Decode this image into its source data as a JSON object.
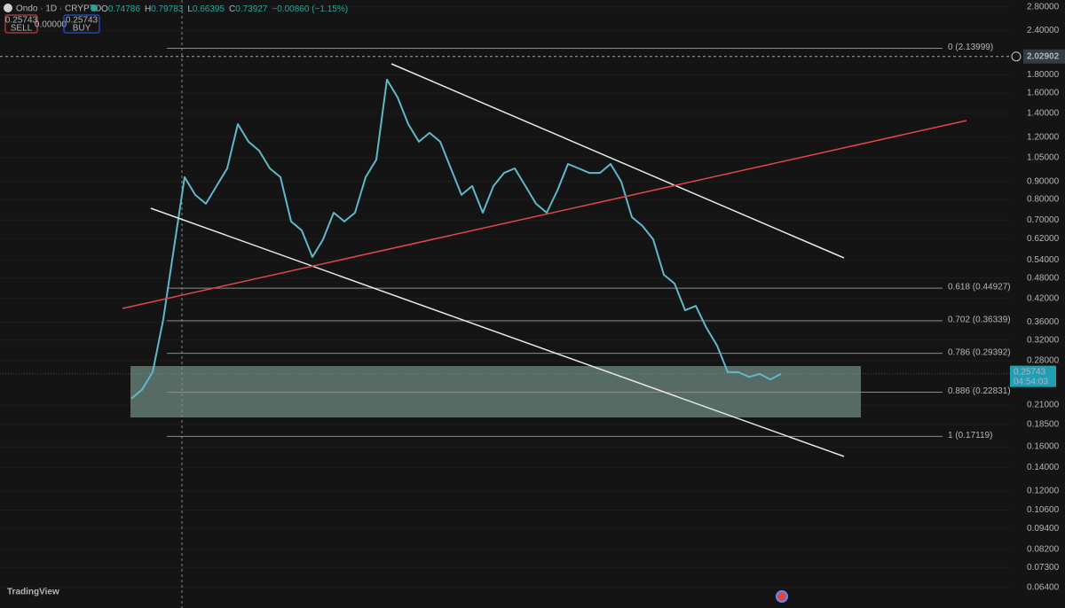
{
  "header": {
    "symbol": "Ondo · 1D · CRYPTO",
    "ohlc": [
      {
        "key": "O",
        "value": 0.74786
      },
      {
        "key": "H",
        "value": 0.79783
      },
      {
        "key": "L",
        "value": 0.66395
      },
      {
        "key": "C",
        "value": 0.73927
      }
    ],
    "change": "−0.00860 (−1.15%)",
    "sell_price": "0.25743",
    "sell_label": "SELL",
    "spread": "0.00000",
    "buy_price": "0.25743",
    "buy_label": "BUY"
  },
  "chart_data": {
    "type": "line",
    "log_scale": true,
    "grid": true,
    "color": "#5fb8c9",
    "values": [
      0.219,
      0.232,
      0.26,
      0.367,
      0.583,
      0.925,
      0.824,
      0.778,
      0.873,
      0.979,
      1.307,
      1.165,
      1.099,
      0.979,
      0.925,
      0.693,
      0.654,
      0.55,
      0.617,
      0.734,
      0.693,
      0.734,
      0.925,
      1.037,
      1.744,
      1.554,
      1.307,
      1.165,
      1.234,
      1.165,
      0.979,
      0.824,
      0.873,
      0.734,
      0.873,
      0.951,
      0.979,
      0.873,
      0.778,
      0.734,
      0.848,
      1.008,
      0.979,
      0.951,
      0.951,
      1.008,
      0.898,
      0.713,
      0.673,
      0.617,
      0.49,
      0.463,
      0.389,
      0.4,
      0.347,
      0.309,
      0.26,
      0.26,
      0.252,
      0.257,
      0.248,
      0.257
    ],
    "ylim": [
      0.058,
      2.93
    ],
    "yticks": [
      {
        "value": 2.8,
        "label": "2.80000"
      },
      {
        "value": 2.4,
        "label": "2.40000"
      },
      {
        "value": 1.8,
        "label": "1.80000"
      },
      {
        "value": 1.6,
        "label": "1.60000"
      },
      {
        "value": 1.4,
        "label": "1.40000"
      },
      {
        "value": 1.2,
        "label": "1.20000"
      },
      {
        "value": 1.05,
        "label": "1.05000"
      },
      {
        "value": 0.9,
        "label": "0.90000"
      },
      {
        "value": 0.8,
        "label": "0.80000"
      },
      {
        "value": 0.7,
        "label": "0.70000"
      },
      {
        "value": 0.62,
        "label": "0.62000"
      },
      {
        "value": 0.54,
        "label": "0.54000"
      },
      {
        "value": 0.48,
        "label": "0.48000"
      },
      {
        "value": 0.42,
        "label": "0.42000"
      },
      {
        "value": 0.36,
        "label": "0.36000"
      },
      {
        "value": 0.32,
        "label": "0.32000"
      },
      {
        "value": 0.28,
        "label": "0.28000"
      },
      {
        "value": 0.21,
        "label": "0.21000"
      },
      {
        "value": 0.185,
        "label": "0.18500"
      },
      {
        "value": 0.16,
        "label": "0.16000"
      },
      {
        "value": 0.14,
        "label": "0.14000"
      },
      {
        "value": 0.12,
        "label": "0.12000"
      },
      {
        "value": 0.106,
        "label": "0.10600"
      },
      {
        "value": 0.094,
        "label": "0.09400"
      },
      {
        "value": 0.082,
        "label": "0.08200"
      },
      {
        "value": 0.073,
        "label": "0.07300"
      },
      {
        "value": 0.064,
        "label": "0.06400"
      }
    ],
    "fib_levels": [
      {
        "value": 2.13999,
        "label": "0 (2.13999)"
      },
      {
        "value": 0.44927,
        "label": "0.618 (0.44927)"
      },
      {
        "value": 0.36339,
        "label": "0.702 (0.36339)"
      },
      {
        "value": 0.29392,
        "label": "0.786 (0.29392)"
      },
      {
        "value": 0.22831,
        "label": "0.886 (0.22831)"
      },
      {
        "value": 0.17119,
        "label": "1 (0.17119)"
      }
    ],
    "crosshair_price": 2.02902,
    "last_price": 0.25743,
    "countdown": "04:54:03"
  },
  "footer": {
    "brand": "TradingView"
  }
}
